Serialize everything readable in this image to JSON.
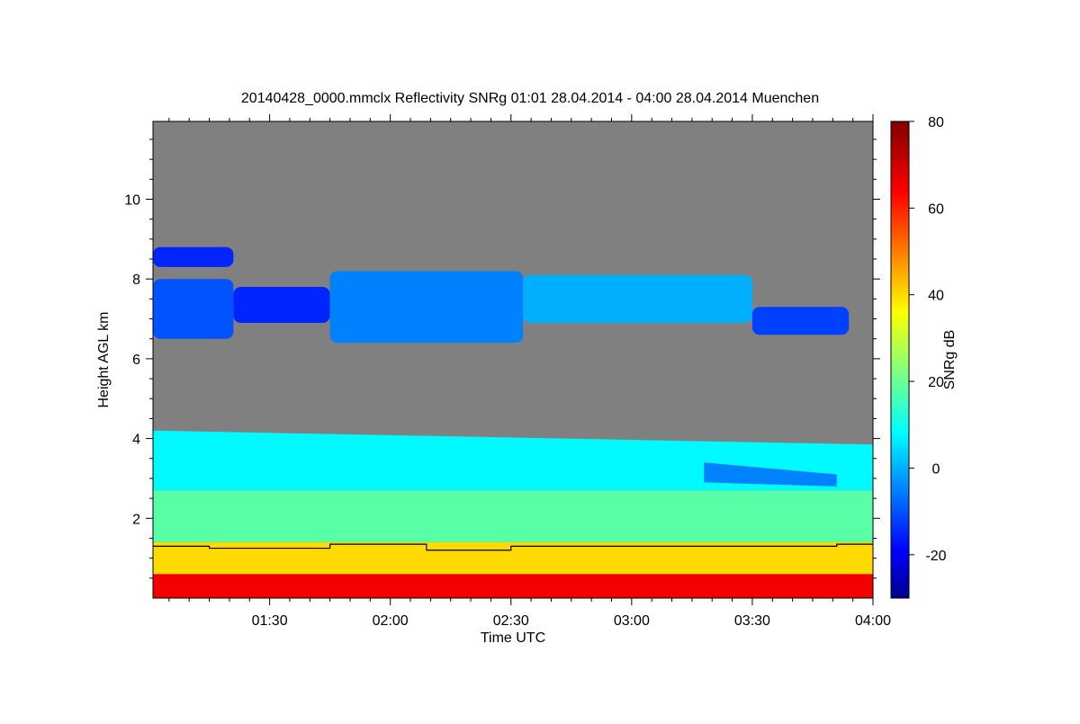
{
  "chart_data": {
    "type": "heatmap",
    "title": "20140428_0000.mmclx Reflectivity SNRg   01:01 28.04.2014 - 04:00 28.04.2014 Muenchen",
    "xlabel": "Time UTC",
    "ylabel": "Height AGL km",
    "colorbar_label": "SNRg dB",
    "xlim": [
      1.0167,
      4.0
    ],
    "ylim": [
      0.0,
      11.95
    ],
    "clim": [
      -30,
      80
    ],
    "x_ticks": [
      {
        "value": 1.5,
        "label": "01:30"
      },
      {
        "value": 2.0,
        "label": "02:00"
      },
      {
        "value": 2.5,
        "label": "02:30"
      },
      {
        "value": 3.0,
        "label": "03:00"
      },
      {
        "value": 3.5,
        "label": "03:30"
      },
      {
        "value": 4.0,
        "label": "04:00"
      }
    ],
    "y_ticks": [
      {
        "value": 2,
        "label": "2"
      },
      {
        "value": 4,
        "label": "4"
      },
      {
        "value": 6,
        "label": "6"
      },
      {
        "value": 8,
        "label": "8"
      },
      {
        "value": 10,
        "label": "10"
      }
    ],
    "colorbar_ticks": [
      {
        "value": -20,
        "label": "-20"
      },
      {
        "value": 0,
        "label": "0"
      },
      {
        "value": 20,
        "label": "20"
      },
      {
        "value": 40,
        "label": "40"
      },
      {
        "value": 60,
        "label": "60"
      },
      {
        "value": 80,
        "label": "80"
      }
    ],
    "colormap": [
      "#00008f",
      "#0000ff",
      "#00ffff",
      "#ffff00",
      "#ff0000",
      "#800000"
    ],
    "background_color": "#808080",
    "snr_regions": [
      {
        "name": "boundary-layer-mixed",
        "x": [
          1.0167,
          4.0
        ],
        "y_bottom": [
          2.7,
          2.7
        ],
        "y_top": [
          4.2,
          3.85
        ],
        "snr": 8
      },
      {
        "name": "lower-cloud-tail",
        "x": [
          3.3,
          3.85
        ],
        "y_bottom": [
          2.9,
          2.8
        ],
        "y_top": [
          3.4,
          3.1
        ],
        "snr": -5
      },
      {
        "name": "rain-layer",
        "x": [
          1.0167,
          4.0
        ],
        "y_bottom": [
          1.4,
          1.4
        ],
        "y_top": [
          2.7,
          2.7
        ],
        "snr": 18
      },
      {
        "name": "melting-zone",
        "x": [
          1.0167,
          4.0
        ],
        "y_bottom": [
          0.6,
          0.6
        ],
        "y_top": [
          1.4,
          1.4
        ],
        "snr": 40
      },
      {
        "name": "near-surface",
        "x": [
          1.0167,
          4.0
        ],
        "y_bottom": [
          0.0,
          0.0
        ],
        "y_top": [
          0.6,
          0.6
        ],
        "snr": 65
      }
    ],
    "cloud_layers": [
      {
        "name": "upper-cloud-start",
        "x": [
          1.0167,
          1.35
        ],
        "y_bottom": 6.5,
        "y_top": 8.0,
        "snr": -10
      },
      {
        "name": "upper-cloud-thin",
        "x": [
          1.35,
          1.75
        ],
        "y_bottom": 6.9,
        "y_top": 7.8,
        "snr": -15
      },
      {
        "name": "upper-cloud-main",
        "x": [
          1.75,
          2.55
        ],
        "y_bottom": 6.4,
        "y_top": 8.2,
        "snr": -5
      },
      {
        "name": "upper-cloud-mid",
        "x": [
          2.55,
          3.5
        ],
        "y_bottom": 6.9,
        "y_top": 8.1,
        "snr": 0
      },
      {
        "name": "upper-cloud-end",
        "x": [
          3.5,
          3.9
        ],
        "y_bottom": 6.6,
        "y_top": 7.3,
        "snr": -12
      },
      {
        "name": "cirrus-high",
        "x": [
          1.0167,
          1.35
        ],
        "y_bottom": 8.3,
        "y_top": 8.8,
        "snr": -15
      }
    ],
    "melting_layer_line": {
      "x": [
        1.0167,
        1.25,
        1.25,
        1.75,
        1.75,
        2.15,
        2.15,
        2.5,
        2.5,
        3.85,
        3.85,
        4.0
      ],
      "y": [
        1.3,
        1.3,
        1.25,
        1.25,
        1.35,
        1.35,
        1.2,
        1.2,
        1.3,
        1.3,
        1.35,
        1.35
      ]
    }
  }
}
